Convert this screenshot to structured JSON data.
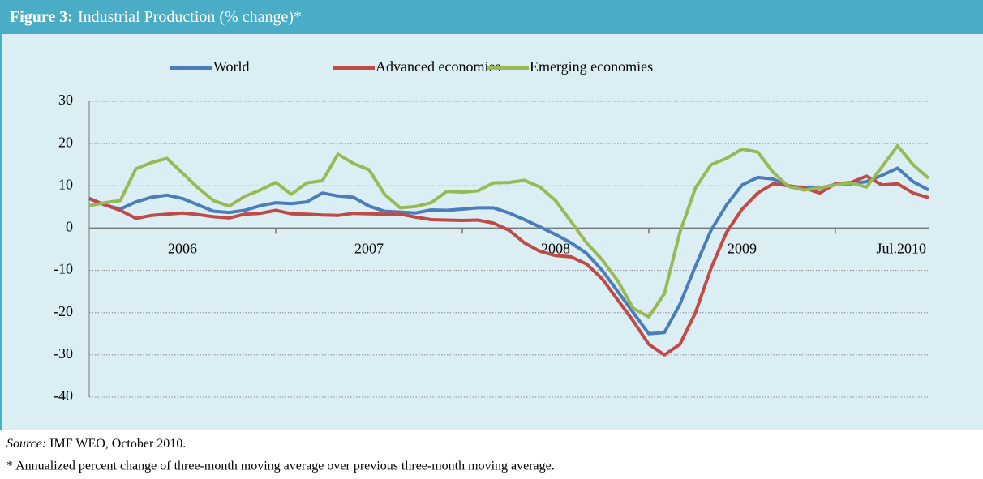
{
  "chart_data": {
    "type": "line",
    "title_label": "Figure 3:",
    "title": "Industrial Production (% change)*",
    "categories": [
      null,
      null,
      null,
      null,
      null,
      null,
      "2006",
      null,
      null,
      null,
      null,
      null,
      null,
      null,
      null,
      null,
      null,
      null,
      "2007",
      null,
      null,
      null,
      null,
      null,
      null,
      null,
      null,
      null,
      null,
      null,
      "2008",
      null,
      null,
      null,
      null,
      null,
      null,
      null,
      null,
      null,
      null,
      null,
      "2009",
      null,
      null,
      null,
      null,
      null,
      null,
      null,
      null,
      null,
      null,
      null,
      "Jul.2010"
    ],
    "xticks": [
      12,
      24,
      36,
      48
    ],
    "series": [
      {
        "name": "World",
        "color": "#4a7ebb",
        "values": [
          7,
          5.5,
          4.5,
          6.2,
          7.3,
          7.8,
          7,
          5.5,
          4,
          3.7,
          4.2,
          5.3,
          6,
          5.8,
          6.2,
          8.3,
          7.6,
          7.3,
          5.2,
          4,
          3.8,
          3.6,
          4.3,
          4.2,
          4.5,
          4.8,
          4.8,
          3.6,
          2,
          0.3,
          -1.5,
          -3.5,
          -6,
          -10,
          -15,
          -20,
          -25,
          -24.7,
          -18,
          -9,
          -0.5,
          5.5,
          10.2,
          12,
          11.6,
          10,
          9.5,
          9.5,
          10.3,
          10.5,
          11,
          12.5,
          14.2,
          11,
          9
        ]
      },
      {
        "name": "Advanced economies",
        "color": "#be4b48",
        "values": [
          7,
          5.5,
          4.2,
          2.3,
          3,
          3.3,
          3.6,
          3.2,
          2.7,
          2.4,
          3.3,
          3.5,
          4.2,
          3.4,
          3.3,
          3.1,
          3,
          3.5,
          3.4,
          3.3,
          3.3,
          2.6,
          2,
          1.9,
          1.8,
          1.9,
          1.2,
          -0.5,
          -3.5,
          -5.5,
          -6.5,
          -6.8,
          -8.5,
          -12,
          -17,
          -22,
          -27.5,
          -30,
          -27.5,
          -20,
          -9.5,
          -1,
          4.5,
          8.3,
          10.5,
          10,
          9.5,
          8.3,
          10.5,
          10.8,
          12.3,
          10.2,
          10.5,
          8.3,
          7.2
        ]
      },
      {
        "name": "Emerging economies",
        "color": "#98b954",
        "values": [
          5.3,
          6,
          6.5,
          14,
          15.5,
          16.5,
          13,
          9.5,
          6.5,
          5.2,
          7.5,
          9,
          10.8,
          8,
          10.7,
          11.2,
          17.5,
          15.3,
          13.8,
          8,
          4.8,
          5.1,
          6,
          8.7,
          8.5,
          8.8,
          10.7,
          10.8,
          11.3,
          9.7,
          6.5,
          1.5,
          -3.5,
          -7.5,
          -12.5,
          -19,
          -21,
          -15.5,
          -1,
          9.5,
          15,
          16.5,
          18.7,
          18,
          13.2,
          9.8,
          9,
          9.5,
          10.2,
          10.7,
          9.7,
          14.5,
          19.5,
          15,
          11.8
        ]
      }
    ],
    "ylim": [
      -40,
      30
    ],
    "yticks": [
      -40,
      -30,
      -20,
      -10,
      0,
      10,
      20,
      30
    ],
    "grid": true
  },
  "source_label": "Source:",
  "source": "IMF WEO, October 2010.",
  "footnote": "* Annualized percent change of three-month moving average over previous three-month moving average."
}
